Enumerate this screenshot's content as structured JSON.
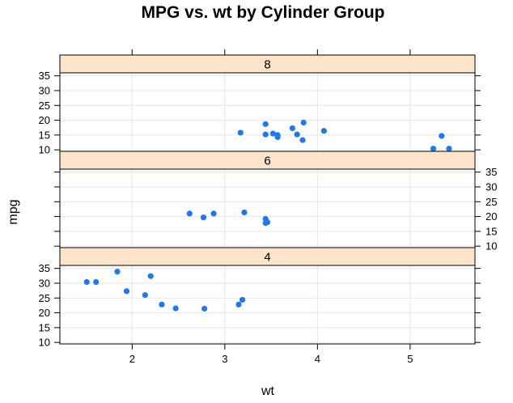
{
  "chart_data": {
    "type": "scatter",
    "title": "MPG vs. wt by Cylinder Group",
    "xlabel": "wt",
    "ylabel": "mpg",
    "xlim": [
      1.22,
      5.7
    ],
    "ylim": [
      9.5,
      36.0
    ],
    "x_ticks": [
      2,
      3,
      4,
      5
    ],
    "y_ticks": [
      10,
      15,
      20,
      25,
      30,
      35
    ],
    "grid": true,
    "point_color": "#1f78f0",
    "strip_color": "#ffe4cc",
    "panels": [
      {
        "name": "8",
        "points": [
          {
            "x": 3.17,
            "y": 15.8
          },
          {
            "x": 3.44,
            "y": 18.7
          },
          {
            "x": 3.44,
            "y": 15.2
          },
          {
            "x": 3.52,
            "y": 15.5
          },
          {
            "x": 3.57,
            "y": 15.0
          },
          {
            "x": 3.57,
            "y": 14.3
          },
          {
            "x": 3.73,
            "y": 17.3
          },
          {
            "x": 3.78,
            "y": 15.2
          },
          {
            "x": 3.84,
            "y": 13.3
          },
          {
            "x": 3.85,
            "y": 19.2
          },
          {
            "x": 4.07,
            "y": 16.4
          },
          {
            "x": 5.25,
            "y": 10.4
          },
          {
            "x": 5.34,
            "y": 14.7
          },
          {
            "x": 5.42,
            "y": 10.4
          }
        ]
      },
      {
        "name": "6",
        "points": [
          {
            "x": 2.62,
            "y": 21.0
          },
          {
            "x": 2.77,
            "y": 19.7
          },
          {
            "x": 2.88,
            "y": 21.0
          },
          {
            "x": 3.21,
            "y": 21.4
          },
          {
            "x": 3.44,
            "y": 19.2
          },
          {
            "x": 3.46,
            "y": 18.1
          },
          {
            "x": 3.44,
            "y": 17.8
          }
        ]
      },
      {
        "name": "4",
        "points": [
          {
            "x": 1.51,
            "y": 30.4
          },
          {
            "x": 1.61,
            "y": 30.4
          },
          {
            "x": 1.84,
            "y": 33.9
          },
          {
            "x": 1.94,
            "y": 27.3
          },
          {
            "x": 2.14,
            "y": 26.0
          },
          {
            "x": 2.2,
            "y": 32.4
          },
          {
            "x": 2.32,
            "y": 22.8
          },
          {
            "x": 2.47,
            "y": 21.5
          },
          {
            "x": 2.78,
            "y": 21.4
          },
          {
            "x": 3.15,
            "y": 22.8
          },
          {
            "x": 3.19,
            "y": 24.4
          }
        ]
      }
    ]
  }
}
